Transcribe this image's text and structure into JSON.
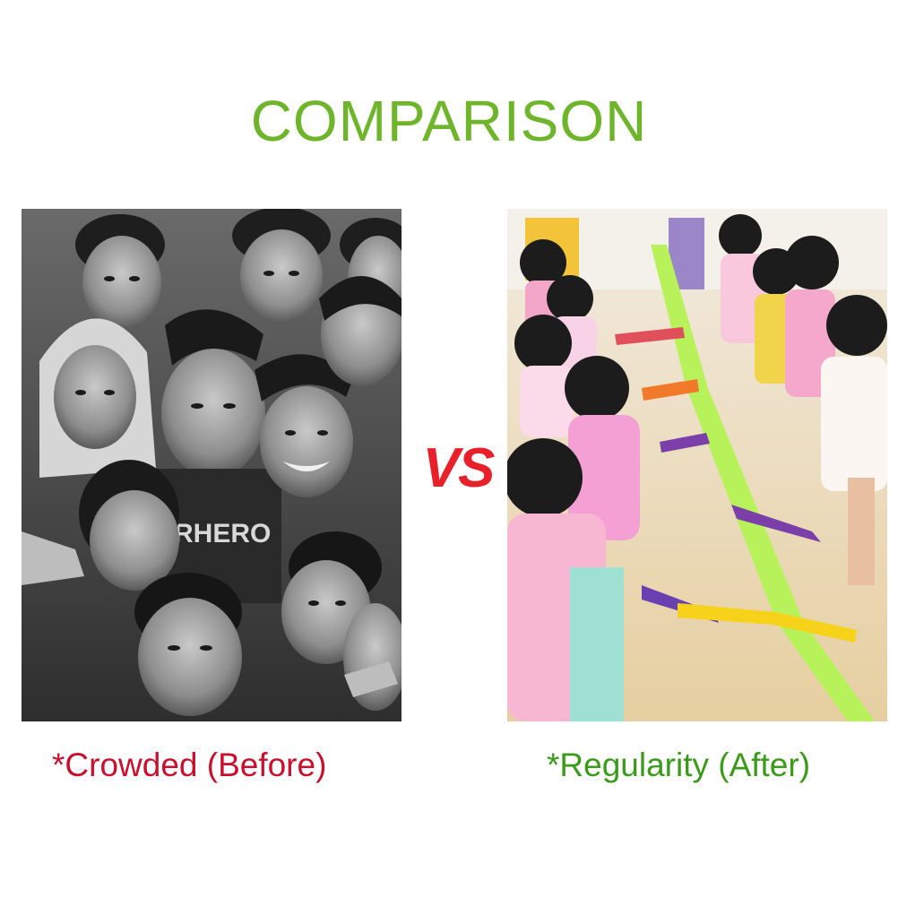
{
  "title": "COMPARISON",
  "vs_label": "VS",
  "before": {
    "caption": "*Crowded (Before)",
    "caption_color": "#c8102e",
    "image": "black-and-white photo of a crowd of children"
  },
  "after": {
    "caption": "*Regularity (After)",
    "caption_color": "#3a9a1a",
    "image": "color photo of children walking in a line holding colored walking rope handles"
  },
  "colors": {
    "title": "#6fb52c",
    "vs": "#e8202a"
  }
}
